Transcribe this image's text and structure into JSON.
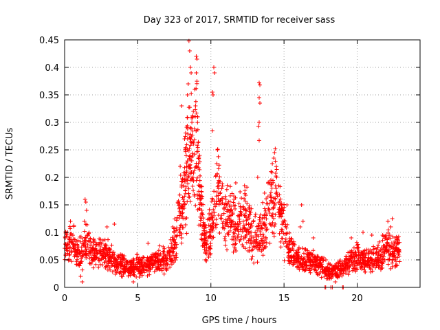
{
  "chart_data": {
    "type": "scatter",
    "title": "Day 323 of 2017, SRMTID for receiver sass",
    "xlabel": "GPS time / hours",
    "ylabel": "SRMTID / TECUs",
    "xlim": [
      0,
      24.3
    ],
    "ylim": [
      0,
      0.45
    ],
    "x_ticks": [
      0,
      5,
      10,
      15,
      20
    ],
    "x_tick_labels": [
      "0",
      "5",
      "10",
      "15",
      "20"
    ],
    "y_ticks": [
      0,
      0.05,
      0.1,
      0.15,
      0.2,
      0.25,
      0.3,
      0.35,
      0.4,
      0.45
    ],
    "y_tick_labels": [
      "0",
      "0.05",
      "0.1",
      "0.15",
      "0.2",
      "0.25",
      "0.3",
      "0.35",
      "0.4",
      "0.45"
    ],
    "grid": true,
    "marker": "plus",
    "colors": {
      "series": "#ff0000",
      "grid": "#a0a0a0",
      "axis": "#000000"
    },
    "series": [
      {
        "name": "SRMTID",
        "profile": [
          {
            "x": 0.0,
            "y": 0.075
          },
          {
            "x": 0.5,
            "y": 0.08
          },
          {
            "x": 1.0,
            "y": 0.06
          },
          {
            "x": 1.5,
            "y": 0.08
          },
          {
            "x": 2.0,
            "y": 0.065
          },
          {
            "x": 2.5,
            "y": 0.06
          },
          {
            "x": 3.0,
            "y": 0.06
          },
          {
            "x": 3.5,
            "y": 0.045
          },
          {
            "x": 4.0,
            "y": 0.04
          },
          {
            "x": 4.5,
            "y": 0.035
          },
          {
            "x": 5.0,
            "y": 0.04
          },
          {
            "x": 5.5,
            "y": 0.04
          },
          {
            "x": 6.0,
            "y": 0.045
          },
          {
            "x": 6.5,
            "y": 0.05
          },
          {
            "x": 7.0,
            "y": 0.05
          },
          {
            "x": 7.5,
            "y": 0.08
          },
          {
            "x": 8.0,
            "y": 0.15
          },
          {
            "x": 8.3,
            "y": 0.2
          },
          {
            "x": 8.6,
            "y": 0.25
          },
          {
            "x": 9.0,
            "y": 0.28
          },
          {
            "x": 9.3,
            "y": 0.15
          },
          {
            "x": 9.6,
            "y": 0.08
          },
          {
            "x": 10.0,
            "y": 0.1
          },
          {
            "x": 10.5,
            "y": 0.18
          },
          {
            "x": 11.0,
            "y": 0.13
          },
          {
            "x": 11.5,
            "y": 0.12
          },
          {
            "x": 12.0,
            "y": 0.13
          },
          {
            "x": 12.5,
            "y": 0.12
          },
          {
            "x": 13.0,
            "y": 0.09
          },
          {
            "x": 13.5,
            "y": 0.1
          },
          {
            "x": 14.0,
            "y": 0.14
          },
          {
            "x": 14.5,
            "y": 0.17
          },
          {
            "x": 15.0,
            "y": 0.1
          },
          {
            "x": 15.5,
            "y": 0.06
          },
          {
            "x": 16.0,
            "y": 0.05
          },
          {
            "x": 16.5,
            "y": 0.05
          },
          {
            "x": 17.0,
            "y": 0.045
          },
          {
            "x": 17.5,
            "y": 0.04
          },
          {
            "x": 18.0,
            "y": 0.03
          },
          {
            "x": 18.5,
            "y": 0.03
          },
          {
            "x": 19.0,
            "y": 0.035
          },
          {
            "x": 19.5,
            "y": 0.05
          },
          {
            "x": 20.0,
            "y": 0.055
          },
          {
            "x": 20.5,
            "y": 0.05
          },
          {
            "x": 21.0,
            "y": 0.05
          },
          {
            "x": 21.5,
            "y": 0.055
          },
          {
            "x": 22.0,
            "y": 0.075
          },
          {
            "x": 22.5,
            "y": 0.06
          },
          {
            "x": 22.9,
            "y": 0.07
          }
        ],
        "extra_points": [
          {
            "x": 1.4,
            "y": 0.16
          },
          {
            "x": 1.45,
            "y": 0.155
          },
          {
            "x": 1.5,
            "y": 0.14
          },
          {
            "x": 1.35,
            "y": 0.12
          },
          {
            "x": 0.2,
            "y": 0.1
          },
          {
            "x": 0.4,
            "y": 0.12
          },
          {
            "x": 2.9,
            "y": 0.11
          },
          {
            "x": 3.4,
            "y": 0.115
          },
          {
            "x": 5.7,
            "y": 0.08
          },
          {
            "x": 7.4,
            "y": 0.11
          },
          {
            "x": 8.5,
            "y": 0.448
          },
          {
            "x": 8.55,
            "y": 0.43
          },
          {
            "x": 8.6,
            "y": 0.4
          },
          {
            "x": 8.65,
            "y": 0.39
          },
          {
            "x": 8.45,
            "y": 0.37
          },
          {
            "x": 8.4,
            "y": 0.35
          },
          {
            "x": 9.0,
            "y": 0.42
          },
          {
            "x": 9.05,
            "y": 0.415
          },
          {
            "x": 9.0,
            "y": 0.39
          },
          {
            "x": 8.9,
            "y": 0.36
          },
          {
            "x": 8.95,
            "y": 0.33
          },
          {
            "x": 8.8,
            "y": 0.32
          },
          {
            "x": 9.1,
            "y": 0.31
          },
          {
            "x": 8.7,
            "y": 0.3
          },
          {
            "x": 8.2,
            "y": 0.27
          },
          {
            "x": 8.25,
            "y": 0.25
          },
          {
            "x": 7.9,
            "y": 0.22
          },
          {
            "x": 8.0,
            "y": 0.33
          },
          {
            "x": 10.2,
            "y": 0.4
          },
          {
            "x": 10.25,
            "y": 0.39
          },
          {
            "x": 10.1,
            "y": 0.355
          },
          {
            "x": 10.15,
            "y": 0.35
          },
          {
            "x": 10.1,
            "y": 0.285
          },
          {
            "x": 10.45,
            "y": 0.25
          },
          {
            "x": 10.4,
            "y": 0.225
          },
          {
            "x": 13.3,
            "y": 0.372
          },
          {
            "x": 13.35,
            "y": 0.368
          },
          {
            "x": 13.3,
            "y": 0.345
          },
          {
            "x": 13.35,
            "y": 0.335
          },
          {
            "x": 13.3,
            "y": 0.3
          },
          {
            "x": 13.25,
            "y": 0.293
          },
          {
            "x": 13.3,
            "y": 0.267
          },
          {
            "x": 13.2,
            "y": 0.2
          },
          {
            "x": 14.4,
            "y": 0.252
          },
          {
            "x": 14.35,
            "y": 0.245
          },
          {
            "x": 14.3,
            "y": 0.235
          },
          {
            "x": 14.2,
            "y": 0.225
          },
          {
            "x": 14.5,
            "y": 0.2
          },
          {
            "x": 14.1,
            "y": 0.195
          },
          {
            "x": 11.7,
            "y": 0.19
          },
          {
            "x": 12.3,
            "y": 0.185
          },
          {
            "x": 15.2,
            "y": 0.15
          },
          {
            "x": 16.2,
            "y": 0.15
          },
          {
            "x": 16.3,
            "y": 0.12
          },
          {
            "x": 16.1,
            "y": 0.11
          },
          {
            "x": 17.0,
            "y": 0.09
          },
          {
            "x": 19.6,
            "y": 0.09
          },
          {
            "x": 20.4,
            "y": 0.1
          },
          {
            "x": 21.0,
            "y": 0.095
          },
          {
            "x": 22.1,
            "y": 0.12
          },
          {
            "x": 22.4,
            "y": 0.125
          },
          {
            "x": 22.3,
            "y": 0.11
          },
          {
            "x": 22.6,
            "y": 0.09
          },
          {
            "x": 17.8,
            "y": 0.0
          },
          {
            "x": 17.85,
            "y": 0.0
          },
          {
            "x": 18.2,
            "y": 0.0
          },
          {
            "x": 18.3,
            "y": 0.0
          },
          {
            "x": 19.0,
            "y": 0.0
          },
          {
            "x": 19.05,
            "y": 0.0
          },
          {
            "x": 18.6,
            "y": 0.02
          },
          {
            "x": 18.5,
            "y": 0.01
          },
          {
            "x": 4.7,
            "y": 0.01
          },
          {
            "x": 1.2,
            "y": 0.01
          },
          {
            "x": 1.1,
            "y": 0.02
          }
        ]
      }
    ]
  }
}
